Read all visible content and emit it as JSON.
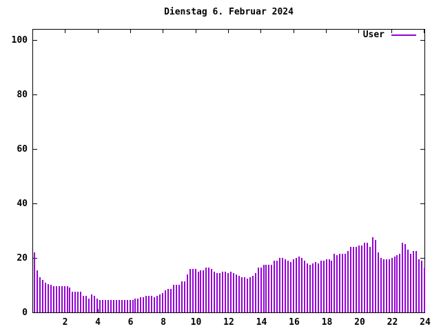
{
  "chart": {
    "title": "Dienstag 6. Februar 2024",
    "legend": {
      "label": "User",
      "line_color": "#9400d3"
    },
    "background": "#ffffff",
    "frame_color": "#000000"
  },
  "chart_data": {
    "type": "bar",
    "style": "impulses",
    "title": "Dienstag 6. Februar 2024",
    "xlabel": "",
    "ylabel": "",
    "xlim": [
      0,
      24
    ],
    "ylim": [
      0,
      104
    ],
    "x_ticks": [
      2,
      4,
      6,
      8,
      10,
      12,
      14,
      16,
      18,
      20,
      22,
      24
    ],
    "y_ticks": [
      0,
      20,
      40,
      60,
      80,
      100
    ],
    "grid": false,
    "legend_position": "top-right",
    "x_unit": "hour of day",
    "sample_interval_minutes": 10,
    "series": [
      {
        "name": "User",
        "color": "#9400d3",
        "values": [
          22,
          15.5,
          13,
          12,
          11,
          10.5,
          10,
          9.5,
          9.5,
          9.5,
          9.5,
          9.5,
          9.5,
          9,
          7.5,
          7.5,
          7.5,
          7.5,
          6,
          6,
          5,
          6.5,
          6,
          5,
          4.5,
          4.5,
          4.5,
          4.5,
          4.5,
          4.5,
          4.5,
          4.5,
          4.5,
          4.5,
          4.5,
          4.5,
          4.5,
          5,
          5,
          5.5,
          5.5,
          6,
          6,
          6,
          5.5,
          6,
          6.5,
          7,
          8,
          8.5,
          8.5,
          10,
          10,
          10,
          11.5,
          11.5,
          14,
          16,
          16,
          16,
          15,
          15.5,
          15.5,
          16.5,
          16.5,
          16,
          15,
          14.5,
          14.5,
          15,
          15,
          14.5,
          15,
          14.5,
          14,
          13.5,
          13,
          13,
          12.5,
          13,
          13.5,
          14.5,
          16.5,
          16.5,
          17.5,
          17.5,
          17.5,
          17.5,
          19,
          19,
          20,
          20,
          19.5,
          19,
          18.5,
          19.5,
          20,
          20.5,
          20,
          19,
          18,
          17.5,
          18,
          18.5,
          18,
          19,
          19,
          19.5,
          19.5,
          19,
          21.5,
          21,
          21.5,
          21.5,
          21.5,
          22.5,
          24,
          24,
          24,
          24.5,
          24.5,
          25.5,
          25.5,
          24,
          27.5,
          26.5,
          22,
          20,
          19.5,
          19.5,
          19.5,
          20,
          20.5,
          21,
          21.5,
          25.5,
          25,
          23,
          21.5,
          22.5,
          22.5,
          19.5,
          19,
          16.5
        ]
      }
    ]
  }
}
